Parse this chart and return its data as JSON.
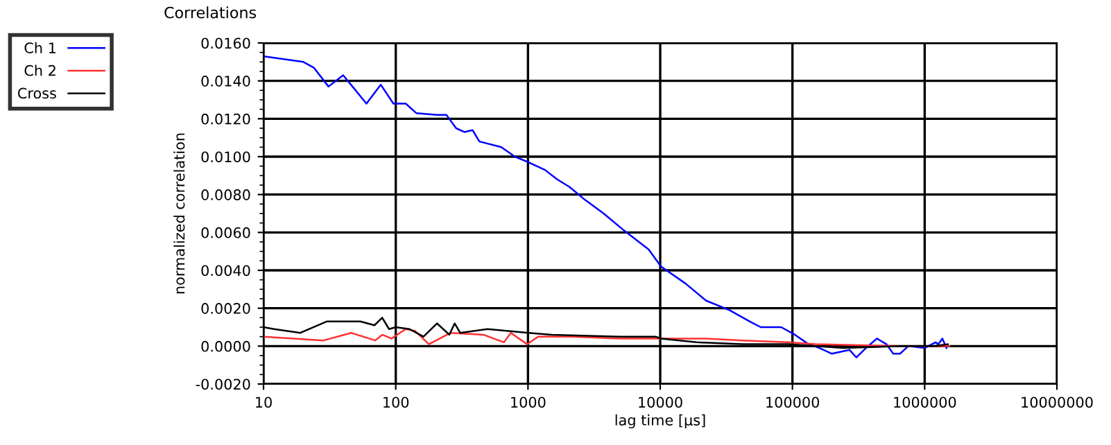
{
  "chart_data": {
    "type": "line",
    "title": "Correlations",
    "xlabel": "lag time [µs]",
    "ylabel": "normalized correlation",
    "log": "x",
    "grid": true,
    "legend": "top left",
    "marker": "none",
    "line_style": "solid",
    "xlim": [
      10,
      10000000
    ],
    "xticks": [
      10,
      100,
      1000,
      10000,
      100000,
      1000000,
      10000000
    ],
    "ylim": [
      -0.002,
      0.016
    ],
    "yticks": [
      {
        "value": -0.002,
        "label": "-0.0020"
      },
      {
        "value": 0,
        "label": "0.0000"
      },
      {
        "value": 0.002,
        "label": "0.0020"
      },
      {
        "value": 0.004,
        "label": "0.0040"
      },
      {
        "value": 0.006,
        "label": "0.0060"
      },
      {
        "value": 0.008,
        "label": "0.0080"
      },
      {
        "value": 0.01,
        "label": "0.0100"
      },
      {
        "value": 0.012,
        "label": "0.0120"
      },
      {
        "value": 0.014,
        "label": "0.0140"
      },
      {
        "value": 0.016,
        "label": "0.0160"
      }
    ],
    "series": [
      {
        "name": "Ch 1",
        "color": "#0000ff",
        "x": [
          10,
          20,
          24,
          31,
          40,
          60,
          77,
          96,
          119,
          143,
          205,
          242,
          286,
          330,
          381,
          429,
          628,
          796,
          1010,
          1343,
          1663,
          2061,
          2614,
          3733,
          5333,
          8185,
          10140,
          15560,
          22230,
          33340,
          47640,
          57580,
          82240,
          104400,
          132500,
          160300,
          198600,
          270400,
          304300,
          359600,
          435400,
          514300,
          578300,
          651200,
          751600,
          1000000,
          1209000,
          1268000,
          1361000,
          1462000
        ],
        "values": [
          0.0153,
          0.015,
          0.0147,
          0.0137,
          0.0143,
          0.0128,
          0.0138,
          0.0128,
          0.0128,
          0.0123,
          0.0122,
          0.0122,
          0.0115,
          0.0113,
          0.0114,
          0.0108,
          0.0105,
          0.01,
          0.0097,
          0.0093,
          0.0088,
          0.0084,
          0.0078,
          0.007,
          0.0061,
          0.0051,
          0.0042,
          0.0033,
          0.0024,
          0.0019,
          0.0013,
          0.001,
          0.001,
          0.0006,
          0.0001,
          -0.0001,
          -0.0004,
          -0.0002,
          -0.0006,
          -0.0001,
          0.0004,
          0.0001,
          -0.0004,
          -0.0004,
          0.0,
          -0.0001,
          0.0002,
          0.0001,
          0.0004,
          -0.0001
        ]
      },
      {
        "name": "Ch 2",
        "color": "#ff3030",
        "x": [
          10,
          28.5,
          46,
          70,
          79,
          93,
          119,
          140,
          178,
          260,
          460,
          658,
          741,
          986,
          1192,
          2213,
          4963,
          10140,
          22230,
          42270,
          92700,
          149200,
          666000,
          1535000
        ],
        "values": [
          0.0005,
          0.0003,
          0.0007,
          0.0003,
          0.0006,
          0.0004,
          0.0009,
          0.0008,
          0.0001,
          0.0007,
          0.0006,
          0.0002,
          0.0007,
          0.0001,
          0.0005,
          0.0005,
          0.0004,
          0.0004,
          0.0004,
          0.0003,
          0.0002,
          0.0001,
          0.0,
          0.0
        ]
      },
      {
        "name": "Cross",
        "color": "#000000",
        "x": [
          10,
          12,
          19,
          30,
          54,
          69,
          79,
          89,
          100,
          127,
          162,
          205,
          254,
          279,
          307,
          494,
          1010,
          1513,
          4963,
          9230,
          10140,
          18830,
          42270,
          92700,
          149200,
          240000,
          666000,
          1180000,
          1496000
        ],
        "values": [
          0.001,
          0.0009,
          0.0007,
          0.0013,
          0.0013,
          0.0011,
          0.0015,
          0.0009,
          0.001,
          0.0009,
          0.0005,
          0.0012,
          0.0006,
          0.0012,
          0.0007,
          0.0009,
          0.0007,
          0.0006,
          0.0005,
          0.0005,
          0.0004,
          0.0002,
          0.0001,
          0.0001,
          0.0,
          -0.0001,
          0.0,
          0.0,
          0.0001
        ]
      }
    ]
  }
}
